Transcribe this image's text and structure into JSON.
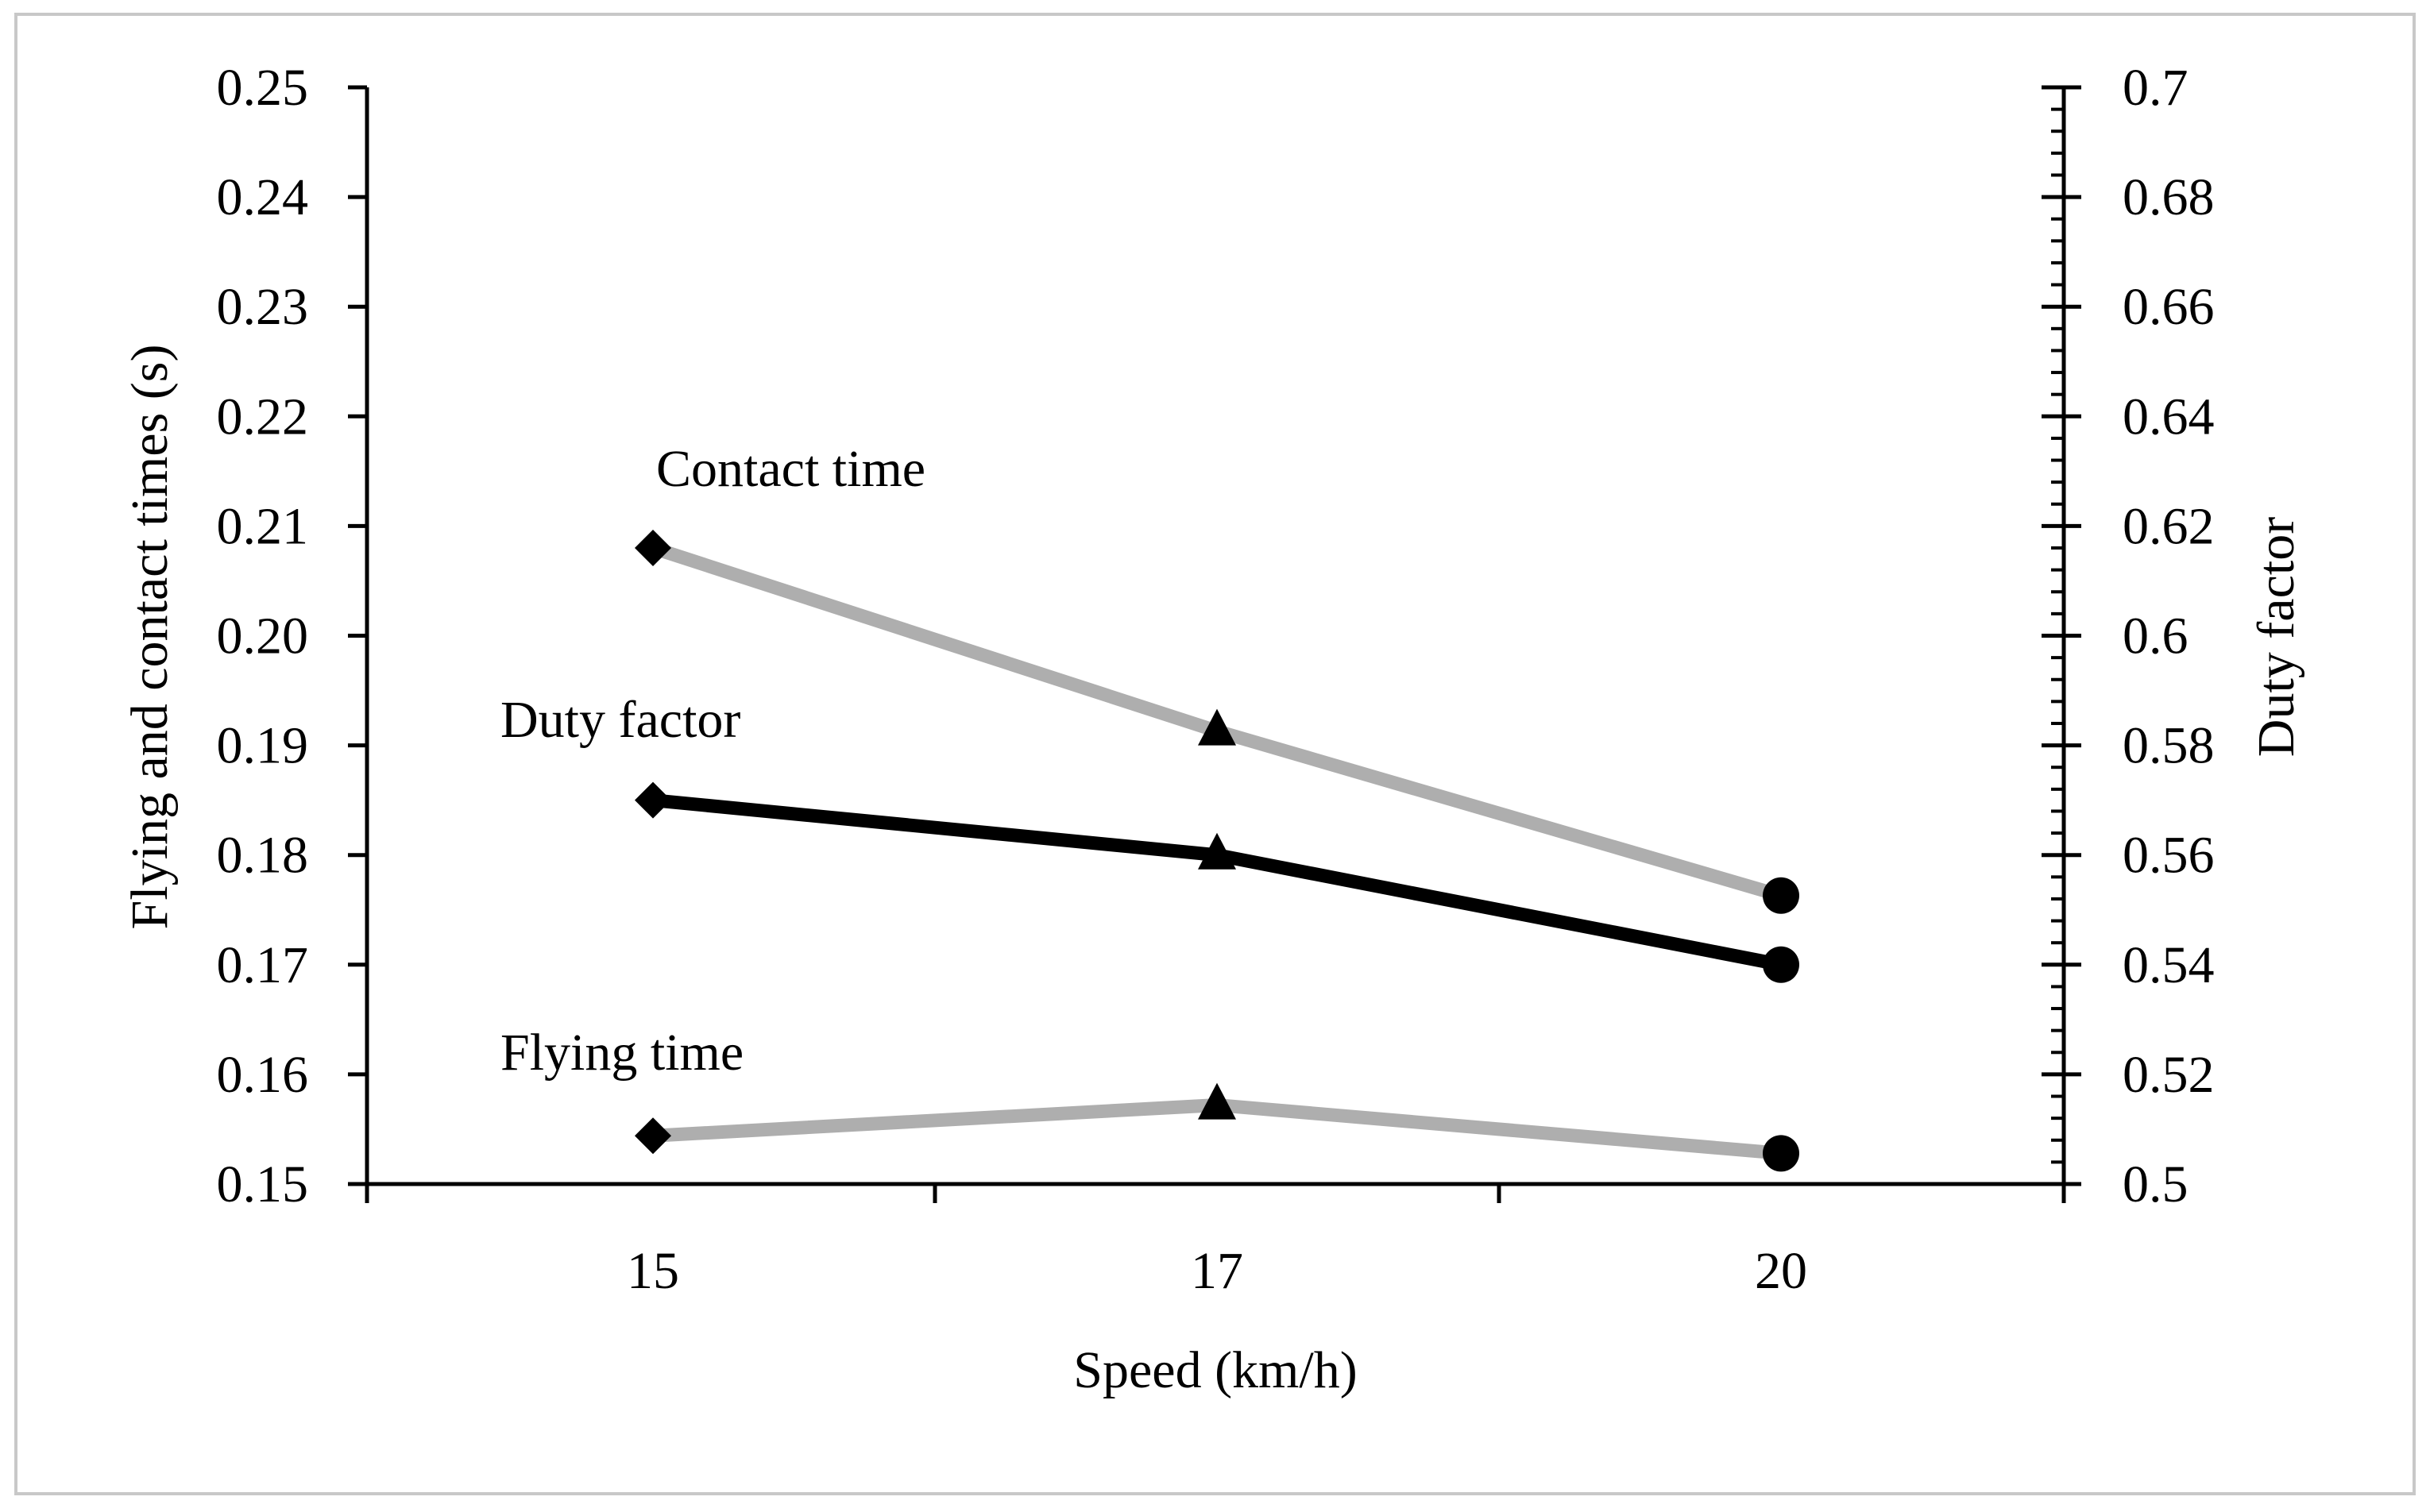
{
  "chart_data": {
    "type": "line",
    "title": "",
    "xlabel": "Speed (km/h)",
    "ylabel_left": "Flying and contact times (s)",
    "ylabel_right": "Duty factor",
    "categories": [
      "15",
      "17",
      "20"
    ],
    "y_left": {
      "min": 0.15,
      "max": 0.25,
      "step": 0.01,
      "tick_labels": [
        "0.15",
        "0.16",
        "0.17",
        "0.18",
        "0.19",
        "0.20",
        "0.21",
        "0.22",
        "0.23",
        "0.24",
        "0.25"
      ]
    },
    "y_right": {
      "min": 0.5,
      "max": 0.7,
      "step": 0.02,
      "minor_step": 0.004,
      "tick_labels": [
        "0.5",
        "0.52",
        "0.54",
        "0.56",
        "0.58",
        "0.6",
        "0.62",
        "0.64",
        "0.66",
        "0.68",
        "0.7"
      ]
    },
    "grid": false,
    "series": [
      {
        "name": "Contact time",
        "axis": "left",
        "color": "#AEAEAE",
        "markers": [
          "diamond",
          "triangle",
          "circle"
        ],
        "values": [
          0.208,
          0.1913,
          0.1763
        ]
      },
      {
        "name": "Duty factor",
        "axis": "right",
        "color": "#000000",
        "markers": [
          "diamond",
          "triangle",
          "circle"
        ],
        "values": [
          0.57,
          0.56,
          0.54
        ]
      },
      {
        "name": "Flying time",
        "axis": "left",
        "color": "#AEAEAE",
        "markers": [
          "diamond",
          "triangle",
          "circle"
        ],
        "values": [
          0.1544,
          0.1572,
          0.1528
        ]
      }
    ],
    "annotations": [
      {
        "text": "Contact time",
        "series": "Contact time"
      },
      {
        "text": "Duty factor",
        "series": "Duty factor"
      },
      {
        "text": "Flying time",
        "series": "Flying time"
      }
    ]
  }
}
